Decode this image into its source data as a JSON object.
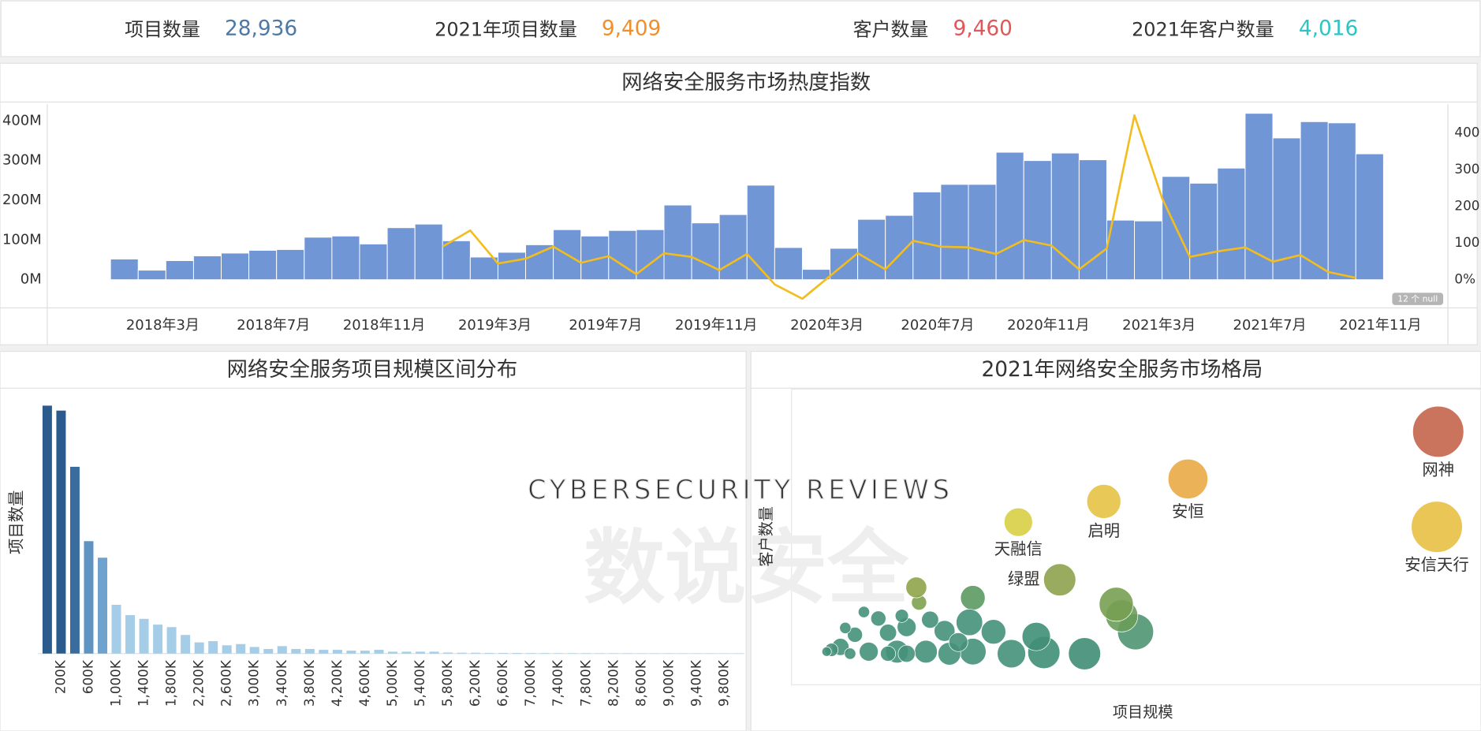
{
  "kpis": [
    {
      "label": "项目数量",
      "value": "28,936",
      "color": "#4e79a7"
    },
    {
      "label": "2021年项目数量",
      "value": "9,409",
      "color": "#f28e2b"
    },
    {
      "label": "客户数量",
      "value": "9,460",
      "color": "#e15759"
    },
    {
      "label": "2021年客户数量",
      "value": "4,016",
      "color": "#2ec4c4"
    }
  ],
  "watermark": {
    "en": "CYBERSECURITY  REVIEWS",
    "cn": "数说安全"
  },
  "chart_data": [
    {
      "type": "combo",
      "title": "网络安全服务市场热度指数",
      "categories": [
        null,
        "2018年3月",
        null,
        null,
        null,
        "2018年7月",
        null,
        null,
        null,
        "2018年11月",
        null,
        null,
        null,
        "2019年3月",
        null,
        null,
        null,
        "2019年7月",
        null,
        null,
        null,
        "2019年11月",
        null,
        null,
        null,
        "2020年3月",
        null,
        null,
        null,
        "2020年7月",
        null,
        null,
        null,
        "2020年11月",
        null,
        null,
        null,
        "2021年3月",
        null,
        null,
        null,
        "2021年7月",
        null,
        null,
        null,
        "2021年11月"
      ],
      "series": [
        {
          "type": "bar",
          "color": "#7196d6",
          "values": [
            52,
            24,
            48,
            60,
            67,
            74,
            76,
            107,
            110,
            90,
            131,
            140,
            98,
            57,
            69,
            88,
            126,
            110,
            124,
            126,
            188,
            143,
            164,
            238,
            81,
            26,
            79,
            152,
            162,
            221,
            240,
            240,
            321,
            300,
            319,
            302,
            150,
            148,
            260,
            243,
            281,
            419,
            357,
            398,
            395,
            317
          ]
        },
        {
          "type": "line",
          "axis": "y2",
          "color": "#f2bd1d",
          "values": [
            null,
            null,
            null,
            null,
            null,
            null,
            null,
            null,
            null,
            null,
            null,
            null,
            90,
            134,
            44,
            57,
            90,
            46,
            64,
            15,
            72,
            62,
            26,
            70,
            -13,
            -52,
            10,
            72,
            28,
            106,
            90,
            88,
            70,
            108,
            93,
            28,
            85,
            448,
            222,
            62,
            77,
            88,
            49,
            67,
            21,
            5
          ]
        }
      ],
      "ylim": [
        -71,
        438
      ],
      "yticks": [
        {
          "value": 0,
          "label": "0M"
        },
        {
          "value": 100,
          "label": "100M"
        },
        {
          "value": 200,
          "label": "200M"
        },
        {
          "value": 300,
          "label": "300M"
        },
        {
          "value": 400,
          "label": "400M"
        }
      ],
      "y2lim": [
        -77,
        474
      ],
      "y2ticks": [
        {
          "value": 0,
          "label": "0%"
        },
        100,
        200,
        300,
        400
      ],
      "null_note": "12 个 null"
    },
    {
      "type": "bar",
      "title": "网络安全服务项目规模区间分布",
      "ylabel": "项目数量",
      "categories": [
        null,
        "200K",
        null,
        "600K",
        null,
        "1,000K",
        null,
        "1,400K",
        null,
        "1,800K",
        null,
        "2,200K",
        null,
        "2,600K",
        null,
        "3,000K",
        null,
        "3,400K",
        null,
        "3,800K",
        null,
        "4,200K",
        null,
        "4,600K",
        null,
        "5,000K",
        null,
        "5,400K",
        null,
        "5,800K",
        null,
        "6,200K",
        null,
        "6,600K",
        null,
        "7,000K",
        null,
        "7,400K",
        null,
        "7,800K",
        null,
        "8,200K",
        null,
        "8,600K",
        null,
        "9,000K",
        null,
        "9,400K",
        null,
        "9,800K",
        null
      ],
      "values": [
        6000,
        5880,
        4520,
        2720,
        2320,
        1180,
        930,
        840,
        700,
        640,
        450,
        270,
        300,
        200,
        230,
        160,
        110,
        180,
        110,
        110,
        90,
        90,
        70,
        70,
        90,
        45,
        45,
        45,
        45,
        25,
        20,
        20,
        15,
        15,
        15,
        12,
        12,
        10,
        10,
        10,
        8,
        8,
        8,
        6,
        6,
        6,
        5,
        5,
        5,
        4,
        4
      ],
      "colors": [
        "#2b5b8c",
        "#2b5b8c",
        "#3a6c9e",
        "#5f93c2",
        "#6fa2cd",
        "#a5cde8",
        "#a5cde8",
        "#a5cde8",
        "#a5cde8",
        "#a5cde8",
        "#a5cde8",
        "#a5cde8",
        "#a5cde8",
        "#a5cde8",
        "#a5cde8",
        "#a5cde8",
        "#a5cde8",
        "#a5cde8",
        "#a5cde8",
        "#a5cde8",
        "#a5cde8",
        "#a5cde8",
        "#a5cde8",
        "#a5cde8",
        "#a5cde8",
        "#a5cde8",
        "#a5cde8",
        "#a5cde8",
        "#a5cde8",
        "#a5cde8",
        "#a5cde8",
        "#a5cde8",
        "#a5cde8",
        "#a5cde8",
        "#a5cde8",
        "#a5cde8",
        "#a5cde8",
        "#a5cde8",
        "#a5cde8",
        "#a5cde8",
        "#a5cde8",
        "#a5cde8",
        "#a5cde8",
        "#a5cde8",
        "#a5cde8",
        "#a5cde8",
        "#a5cde8",
        "#a5cde8",
        "#a5cde8",
        "#a5cde8",
        "#a5cde8"
      ],
      "ylim": [
        0,
        6400
      ]
    },
    {
      "type": "scatter",
      "title": "2021年网络安全服务市场格局",
      "xlabel": "项目规模",
      "ylabel": "客户数量",
      "xlim": [
        0,
        100
      ],
      "ylim": [
        0,
        100
      ],
      "x": [
        93.8,
        93.6,
        57.5,
        45.3,
        32.9,
        38.9,
        49.9,
        47.9,
        47.1,
        42.5,
        36.6,
        35.5,
        31.9,
        29.3,
        26.3,
        25.8,
        26.3,
        22.2,
        20.1,
        18.5,
        18.1,
        16.7,
        15.3,
        14.0,
        12.6,
        10.5,
        9.2,
        7.1,
        5.8,
        11.2,
        19.5,
        22.9,
        16.0,
        7.8,
        24.2,
        5.1,
        8.5,
        14.0,
        16.7
      ],
      "values": [
        85.6,
        53.4,
        69.6,
        62.0,
        55.0,
        35.5,
        17.9,
        23.3,
        27.2,
        10.5,
        10.9,
        16.3,
        10.5,
        17.9,
        29.4,
        21.1,
        11.2,
        18.2,
        22.0,
        27.8,
        32.9,
        19.5,
        11.2,
        17.6,
        22.4,
        24.6,
        16.9,
        12.8,
        11.8,
        11.2,
        11.2,
        10.5,
        23.3,
        19.2,
        14.4,
        11.2,
        10.5,
        10.5,
        10.5
      ],
      "sizes": [
        27,
        27,
        21,
        18,
        15,
        17,
        19,
        17,
        18,
        17,
        17,
        15,
        15,
        13,
        13,
        14,
        14,
        11,
        9,
        8,
        11,
        10,
        12,
        9,
        8,
        6,
        8,
        9,
        7,
        10,
        12,
        12,
        7,
        6,
        10,
        5,
        6,
        8,
        9
      ],
      "colors": [
        "#c4654b",
        "#e8c044",
        "#e9aa45",
        "#e6c244",
        "#d8cf44",
        "#8ea24c",
        "#4f9672",
        "#6a9c5a",
        "#78a052",
        "#3f8d76",
        "#3f8f76",
        "#3f8f76",
        "#45917a",
        "#45917a",
        "#5c9a62",
        "#45917a",
        "#45917a",
        "#45917a",
        "#45917a",
        "#7ea24f",
        "#8fa44a",
        "#45917a",
        "#45917a",
        "#45917a",
        "#45917a",
        "#45917a",
        "#45917a",
        "#45917a",
        "#45917a",
        "#45917a",
        "#45917a",
        "#45917a",
        "#45917a",
        "#45917a",
        "#45917a",
        "#45917a",
        "#45917a",
        "#45917a",
        "#45917a"
      ],
      "labels": [
        "网神",
        "安信天行",
        "安恒",
        "启明",
        "天融信",
        "绿盟",
        null,
        null,
        null,
        null,
        null,
        null,
        null,
        null,
        null,
        null,
        null,
        null,
        null,
        null,
        null,
        null,
        null,
        null,
        null,
        null,
        null,
        null,
        null,
        null,
        null,
        null,
        null,
        null,
        null,
        null,
        null,
        null,
        null
      ]
    }
  ]
}
